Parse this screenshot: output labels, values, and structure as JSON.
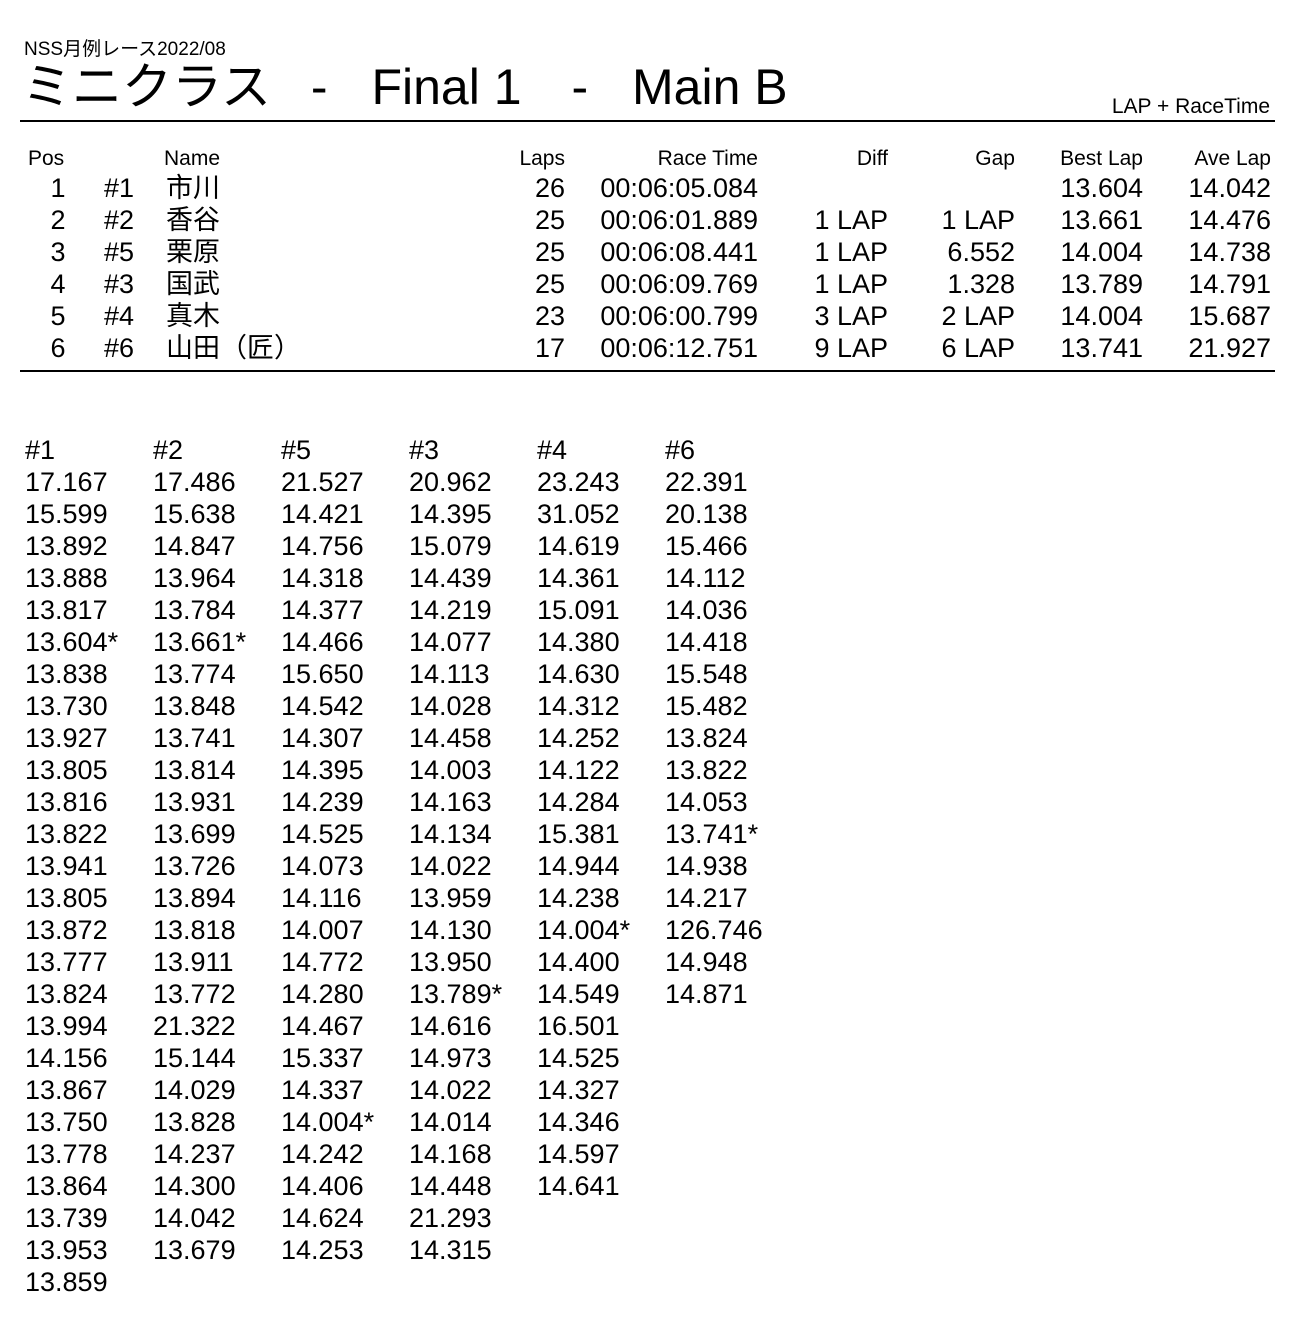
{
  "header": {
    "event": "NSS月例レース2022/08",
    "title_class": "ミニクラス",
    "title_sep": "-",
    "title_final": "Final 1",
    "title_main": "Main B",
    "mode": "LAP + RaceTime"
  },
  "results": {
    "columns": {
      "pos": "Pos",
      "name": "Name",
      "laps": "Laps",
      "race_time": "Race Time",
      "diff": "Diff",
      "gap": "Gap",
      "best_lap": "Best Lap",
      "ave_lap": "Ave Lap"
    },
    "rows": [
      {
        "pos": "1",
        "num": "#1",
        "name": "市川",
        "laps": "26",
        "race_time": "00:06:05.084",
        "diff": "",
        "gap": "",
        "best_lap": "13.604",
        "ave_lap": "14.042"
      },
      {
        "pos": "2",
        "num": "#2",
        "name": "香谷",
        "laps": "25",
        "race_time": "00:06:01.889",
        "diff": "1 LAP",
        "gap": "1 LAP",
        "best_lap": "13.661",
        "ave_lap": "14.476"
      },
      {
        "pos": "3",
        "num": "#5",
        "name": "栗原",
        "laps": "25",
        "race_time": "00:06:08.441",
        "diff": "1 LAP",
        "gap": "6.552",
        "best_lap": "14.004",
        "ave_lap": "14.738"
      },
      {
        "pos": "4",
        "num": "#3",
        "name": "国武",
        "laps": "25",
        "race_time": "00:06:09.769",
        "diff": "1 LAP",
        "gap": "1.328",
        "best_lap": "13.789",
        "ave_lap": "14.791"
      },
      {
        "pos": "5",
        "num": "#4",
        "name": "真木",
        "laps": "23",
        "race_time": "00:06:00.799",
        "diff": "3 LAP",
        "gap": "2 LAP",
        "best_lap": "14.004",
        "ave_lap": "15.687"
      },
      {
        "pos": "6",
        "num": "#6",
        "name": "山田（匠）",
        "laps": "17",
        "race_time": "00:06:12.751",
        "diff": "9 LAP",
        "gap": "6 LAP",
        "best_lap": "13.741",
        "ave_lap": "21.927"
      }
    ]
  },
  "lap_times": [
    {
      "car": "#1",
      "laps": [
        "17.167",
        "15.599",
        "13.892",
        "13.888",
        "13.817",
        "13.604*",
        "13.838",
        "13.730",
        "13.927",
        "13.805",
        "13.816",
        "13.822",
        "13.941",
        "13.805",
        "13.872",
        "13.777",
        "13.824",
        "13.994",
        "14.156",
        "13.867",
        "13.750",
        "13.778",
        "13.864",
        "13.739",
        "13.953",
        "13.859"
      ]
    },
    {
      "car": "#2",
      "laps": [
        "17.486",
        "15.638",
        "14.847",
        "13.964",
        "13.784",
        "13.661*",
        "13.774",
        "13.848",
        "13.741",
        "13.814",
        "13.931",
        "13.699",
        "13.726",
        "13.894",
        "13.818",
        "13.911",
        "13.772",
        "21.322",
        "15.144",
        "14.029",
        "13.828",
        "14.237",
        "14.300",
        "14.042",
        "13.679"
      ]
    },
    {
      "car": "#5",
      "laps": [
        "21.527",
        "14.421",
        "14.756",
        "14.318",
        "14.377",
        "14.466",
        "15.650",
        "14.542",
        "14.307",
        "14.395",
        "14.239",
        "14.525",
        "14.073",
        "14.116",
        "14.007",
        "14.772",
        "14.280",
        "14.467",
        "15.337",
        "14.337",
        "14.004*",
        "14.242",
        "14.406",
        "14.624",
        "14.253"
      ]
    },
    {
      "car": "#3",
      "laps": [
        "20.962",
        "14.395",
        "15.079",
        "14.439",
        "14.219",
        "14.077",
        "14.113",
        "14.028",
        "14.458",
        "14.003",
        "14.163",
        "14.134",
        "14.022",
        "13.959",
        "14.130",
        "13.950",
        "13.789*",
        "14.616",
        "14.973",
        "14.022",
        "14.014",
        "14.168",
        "14.448",
        "21.293",
        "14.315"
      ]
    },
    {
      "car": "#4",
      "laps": [
        "23.243",
        "31.052",
        "14.619",
        "14.361",
        "15.091",
        "14.380",
        "14.630",
        "14.312",
        "14.252",
        "14.122",
        "14.284",
        "15.381",
        "14.944",
        "14.238",
        "14.004*",
        "14.400",
        "14.549",
        "16.501",
        "14.525",
        "14.327",
        "14.346",
        "14.597",
        "14.641"
      ]
    },
    {
      "car": "#6",
      "laps": [
        "22.391",
        "20.138",
        "15.466",
        "14.112",
        "14.036",
        "14.418",
        "15.548",
        "15.482",
        "13.824",
        "13.822",
        "14.053",
        "13.741*",
        "14.938",
        "14.217",
        "126.746",
        "14.948",
        "14.871"
      ]
    }
  ]
}
